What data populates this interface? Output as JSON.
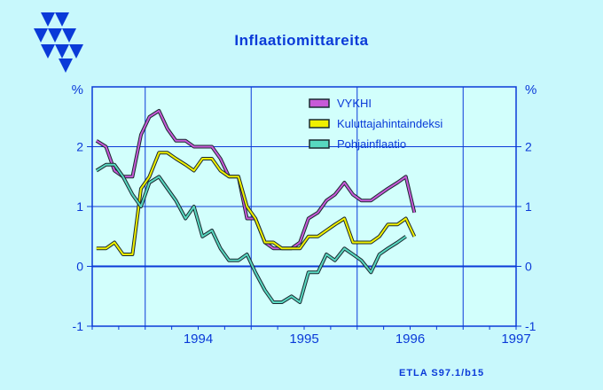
{
  "title": "Inflaatiomittareita",
  "footer": "ETLA S97.1/b15",
  "colors": {
    "background": "#c8f8fc",
    "plot_bg": "#d2fffc",
    "axis": "#0a3ad8",
    "vykhi": "#c85ad8",
    "kuluttaja": "#f0f000",
    "pohja": "#58d8c0"
  },
  "chart_data": {
    "type": "line",
    "title": "Inflaatiomittareita",
    "ylabel_left": "%",
    "ylabel_right": "%",
    "ylim": [
      -1,
      3
    ],
    "yticks": [
      "-1",
      "0",
      "1",
      "2"
    ],
    "xlim": [
      1993.5,
      1997.5
    ],
    "xticks": [
      "1994",
      "1995",
      "1996",
      "1997"
    ],
    "grid": true,
    "legend_position": "top-right",
    "series": [
      {
        "name": "VYKHI",
        "color": "#c85ad8",
        "x": [
          1993.54,
          1993.63,
          1993.71,
          1993.79,
          1993.88,
          1993.96,
          1994.04,
          1994.13,
          1994.21,
          1994.29,
          1994.38,
          1994.46,
          1994.54,
          1994.63,
          1994.71,
          1994.79,
          1994.88,
          1994.96,
          1995.04,
          1995.13,
          1995.21,
          1995.29,
          1995.38,
          1995.46,
          1995.54,
          1995.63,
          1995.71,
          1995.79,
          1995.88,
          1995.96,
          1996.04,
          1996.13,
          1996.21,
          1996.29,
          1996.38,
          1996.46,
          1996.54
        ],
        "y": [
          2.1,
          2.0,
          1.6,
          1.5,
          1.5,
          2.2,
          2.5,
          2.6,
          2.3,
          2.1,
          2.1,
          2.0,
          2.0,
          2.0,
          1.8,
          1.5,
          1.5,
          0.8,
          0.8,
          0.4,
          0.3,
          0.3,
          0.3,
          0.4,
          0.8,
          0.9,
          1.1,
          1.2,
          1.4,
          1.2,
          1.1,
          1.1,
          1.2,
          1.3,
          1.4,
          1.5,
          0.9
        ]
      },
      {
        "name": "Kuluttajahintaindeksi",
        "color": "#f0f000",
        "x": [
          1993.54,
          1993.63,
          1993.71,
          1993.79,
          1993.88,
          1993.96,
          1994.04,
          1994.13,
          1994.21,
          1994.29,
          1994.38,
          1994.46,
          1994.54,
          1994.63,
          1994.71,
          1994.79,
          1994.88,
          1994.96,
          1995.04,
          1995.13,
          1995.21,
          1995.29,
          1995.38,
          1995.46,
          1995.54,
          1995.63,
          1995.71,
          1995.79,
          1995.88,
          1995.96,
          1996.04,
          1996.13,
          1996.21,
          1996.29,
          1996.38,
          1996.46,
          1996.54
        ],
        "y": [
          0.3,
          0.3,
          0.4,
          0.2,
          0.2,
          1.3,
          1.5,
          1.9,
          1.9,
          1.8,
          1.7,
          1.6,
          1.8,
          1.8,
          1.6,
          1.5,
          1.5,
          1.0,
          0.8,
          0.4,
          0.4,
          0.3,
          0.3,
          0.3,
          0.5,
          0.5,
          0.6,
          0.7,
          0.8,
          0.4,
          0.4,
          0.4,
          0.5,
          0.7,
          0.7,
          0.8,
          0.5
        ]
      },
      {
        "name": "Pohjainflaatio",
        "color": "#58d8c0",
        "x": [
          1993.54,
          1993.63,
          1993.71,
          1993.79,
          1993.88,
          1993.96,
          1994.04,
          1994.13,
          1994.21,
          1994.29,
          1994.38,
          1994.46,
          1994.54,
          1994.63,
          1994.71,
          1994.79,
          1994.88,
          1994.96,
          1995.04,
          1995.13,
          1995.21,
          1995.29,
          1995.38,
          1995.46,
          1995.54,
          1995.63,
          1995.71,
          1995.79,
          1995.88,
          1995.96,
          1996.04,
          1996.13,
          1996.21,
          1996.29,
          1996.38,
          1996.46
        ],
        "y": [
          1.6,
          1.7,
          1.7,
          1.5,
          1.2,
          1.0,
          1.4,
          1.5,
          1.3,
          1.1,
          0.8,
          1.0,
          0.5,
          0.6,
          0.3,
          0.1,
          0.1,
          0.2,
          -0.1,
          -0.4,
          -0.6,
          -0.6,
          -0.5,
          -0.6,
          -0.1,
          -0.1,
          0.2,
          0.1,
          0.3,
          0.2,
          0.1,
          -0.1,
          0.2,
          0.3,
          0.4,
          0.5
        ]
      }
    ]
  }
}
